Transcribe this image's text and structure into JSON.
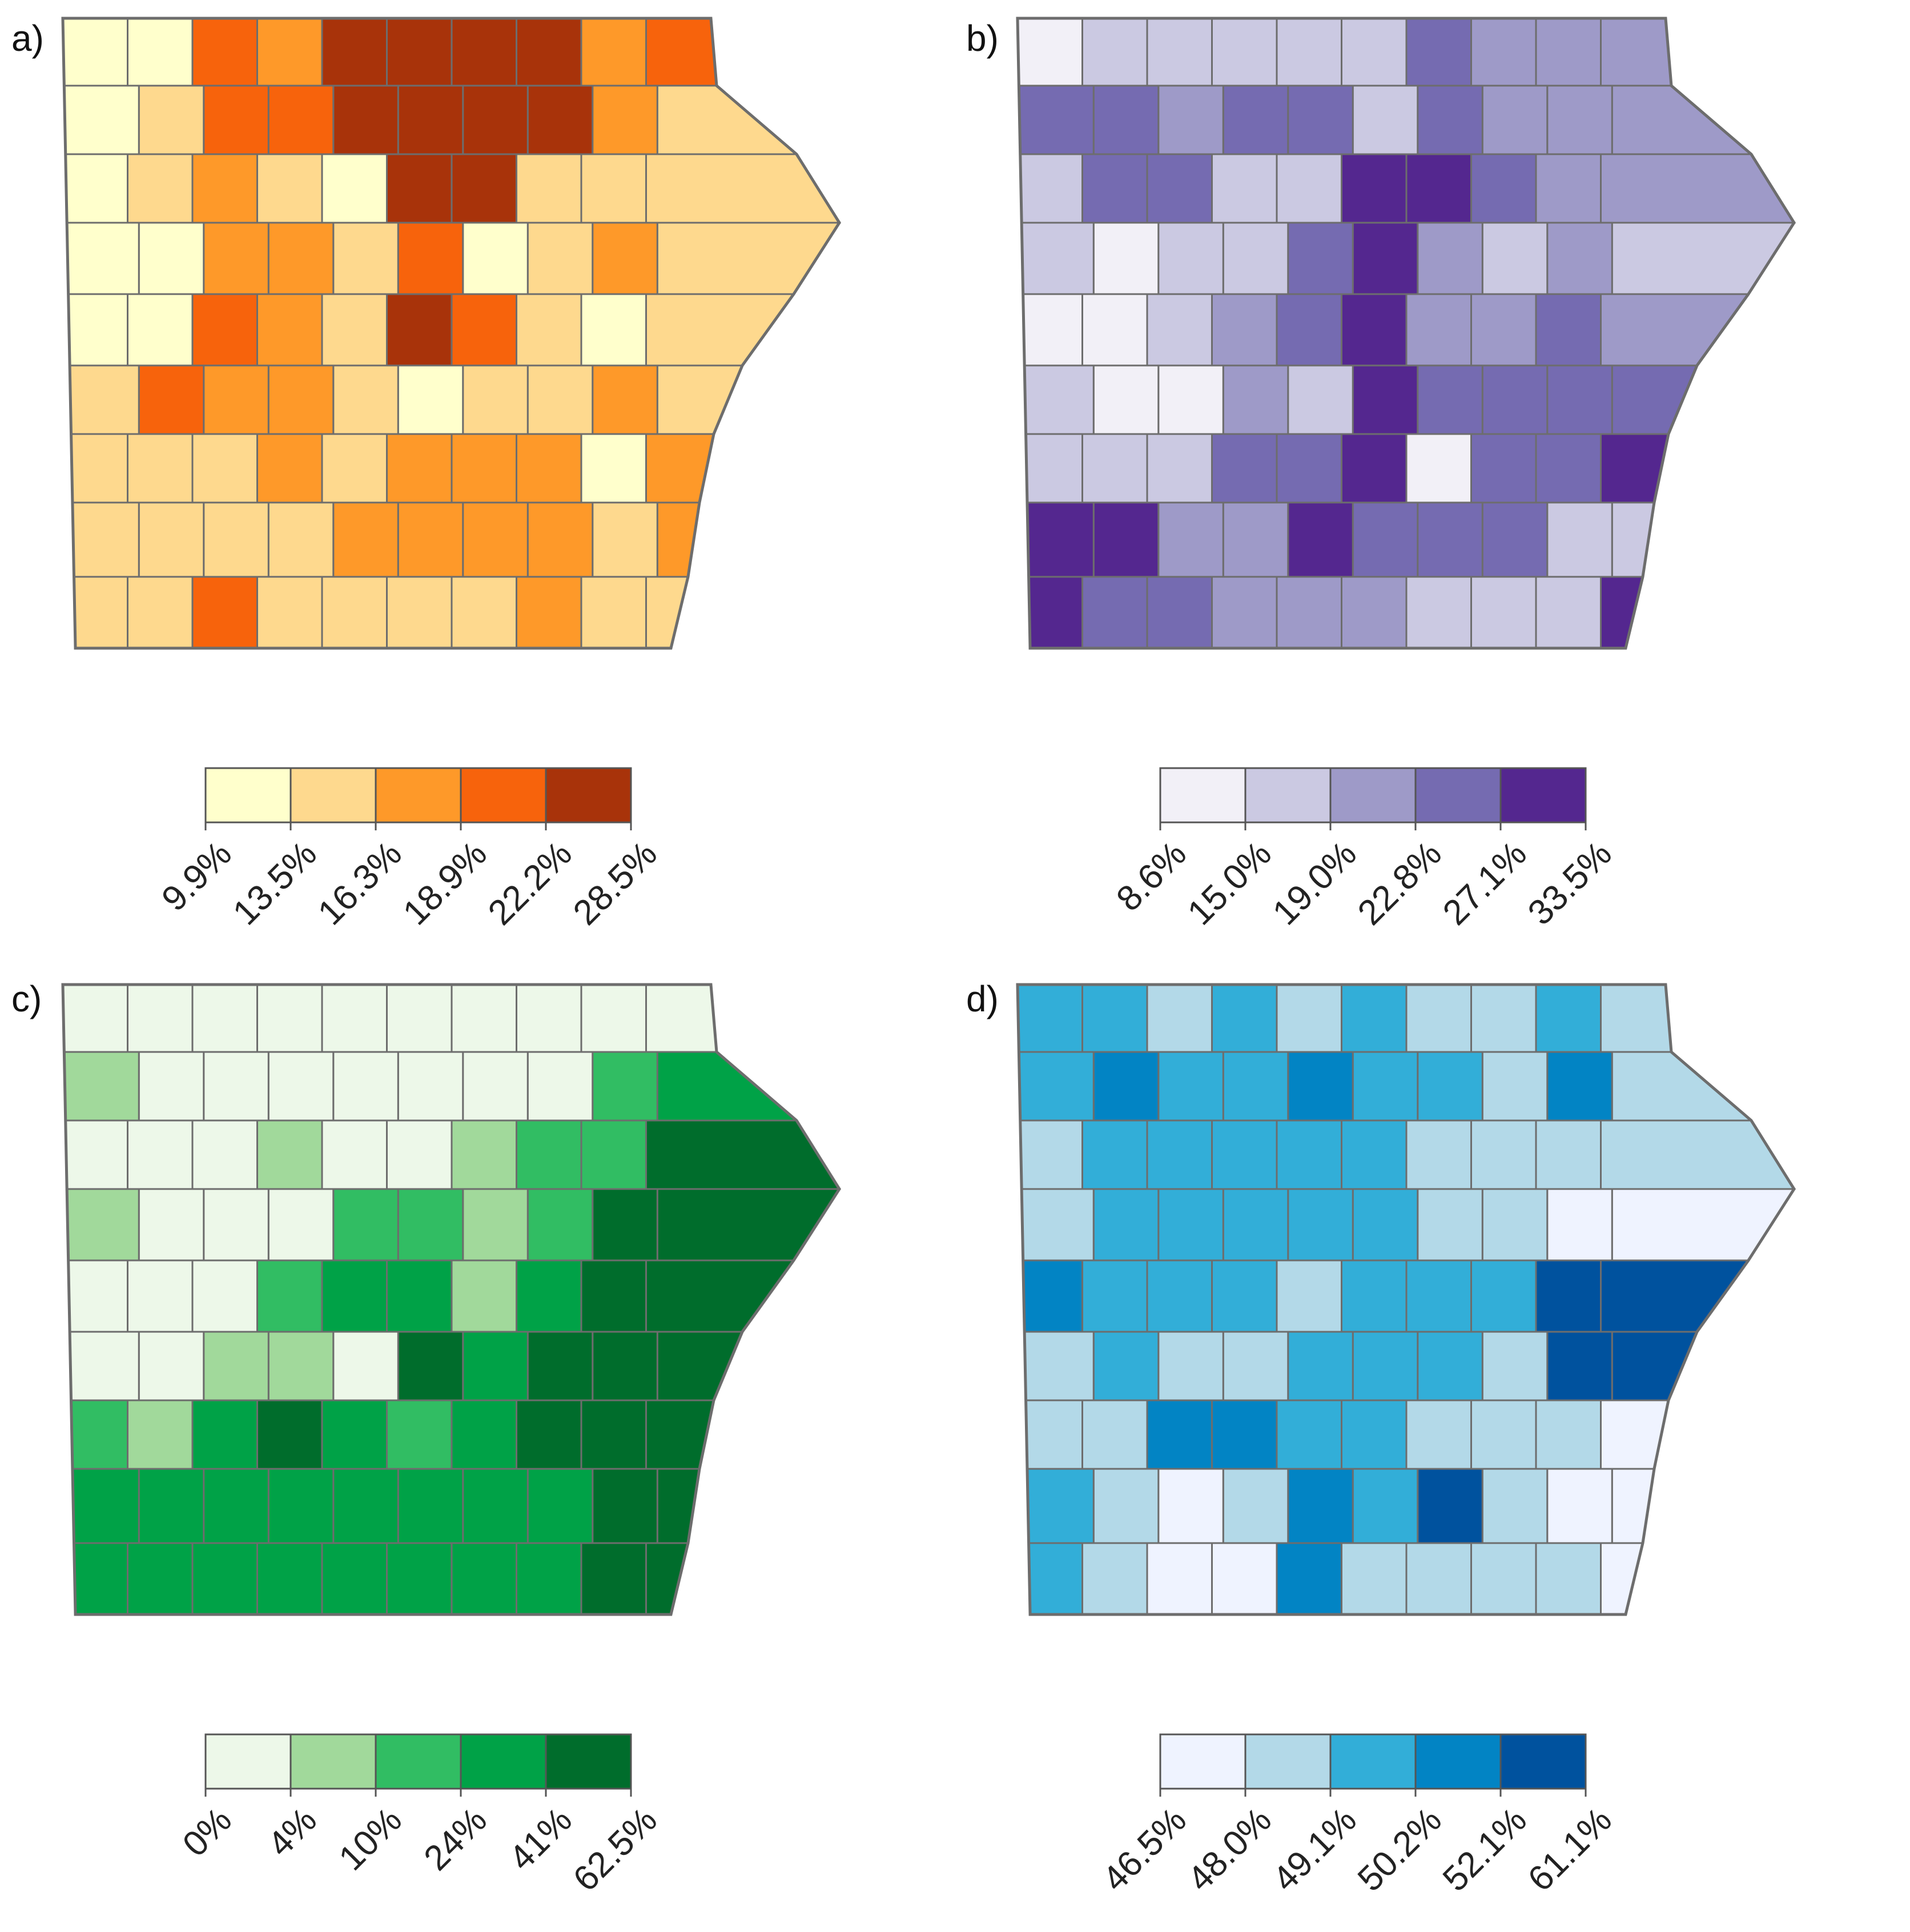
{
  "panels": [
    {
      "letter": "a)",
      "colors": [
        "#ffffcc",
        "#fed98e",
        "#fe9929",
        "#f7630c",
        "#a8330a"
      ],
      "breaks": [
        "9.9%",
        "13.5%",
        "16.3%",
        "18.9%",
        "22.2%",
        "28.5%"
      ],
      "cells": [
        0,
        0,
        3,
        2,
        4,
        4,
        4,
        4,
        2,
        3,
        0,
        1,
        3,
        3,
        4,
        4,
        4,
        4,
        2,
        1,
        0,
        1,
        2,
        1,
        0,
        4,
        4,
        1,
        1,
        1,
        0,
        0,
        2,
        2,
        1,
        3,
        0,
        1,
        2,
        1,
        0,
        0,
        3,
        2,
        1,
        4,
        3,
        1,
        0,
        1,
        1,
        3,
        2,
        2,
        1,
        0,
        1,
        1,
        2,
        1,
        1,
        1,
        1,
        2,
        1,
        2,
        2,
        2,
        0,
        2,
        1,
        1,
        1,
        1,
        2,
        2,
        2,
        2,
        1,
        2,
        1,
        1,
        3,
        1,
        1,
        1,
        1,
        2,
        1,
        1
      ]
    },
    {
      "letter": "b)",
      "colors": [
        "#f2f0f7",
        "#cbc9e2",
        "#9e9ac8",
        "#756bb1",
        "#54278f"
      ],
      "breaks": [
        "8.6%",
        "15.0%",
        "19.0%",
        "22.8%",
        "27.1%",
        "33.5%"
      ],
      "cells": [
        0,
        1,
        1,
        1,
        1,
        1,
        3,
        2,
        2,
        2,
        3,
        3,
        2,
        3,
        3,
        1,
        3,
        2,
        2,
        2,
        1,
        3,
        3,
        1,
        1,
        4,
        4,
        3,
        2,
        2,
        1,
        0,
        1,
        1,
        3,
        4,
        2,
        1,
        2,
        1,
        0,
        0,
        1,
        2,
        3,
        4,
        2,
        2,
        3,
        2,
        1,
        0,
        0,
        2,
        1,
        4,
        3,
        3,
        3,
        3,
        1,
        1,
        1,
        3,
        3,
        4,
        0,
        3,
        3,
        4,
        4,
        4,
        2,
        2,
        4,
        3,
        3,
        3,
        1,
        1,
        4,
        3,
        3,
        2,
        2,
        2,
        1,
        1,
        1,
        4
      ]
    },
    {
      "letter": "c)",
      "colors": [
        "#edf8e9",
        "#a1d99b",
        "#31bd63",
        "#00a247",
        "#006d2c"
      ],
      "breaks": [
        "0%",
        "4%",
        "10%",
        "24%",
        "41%",
        "62.5%"
      ],
      "cells": [
        0,
        0,
        0,
        0,
        0,
        0,
        0,
        0,
        0,
        0,
        1,
        0,
        0,
        0,
        0,
        0,
        0,
        0,
        2,
        3,
        0,
        0,
        0,
        1,
        0,
        0,
        1,
        2,
        2,
        4,
        1,
        0,
        0,
        0,
        2,
        2,
        1,
        2,
        4,
        4,
        0,
        0,
        0,
        2,
        3,
        3,
        1,
        3,
        4,
        4,
        0,
        0,
        1,
        1,
        0,
        4,
        3,
        4,
        4,
        4,
        2,
        1,
        3,
        4,
        3,
        2,
        3,
        4,
        4,
        4,
        3,
        3,
        3,
        3,
        3,
        3,
        3,
        3,
        4,
        4,
        3,
        3,
        3,
        3,
        3,
        3,
        3,
        3,
        4,
        4
      ]
    },
    {
      "letter": "d)",
      "colors": [
        "#eff3ff",
        "#b3d9e8",
        "#32aed8",
        "#0284c4",
        "#00529e"
      ],
      "breaks": [
        "46.5%",
        "48.0%",
        "49.1%",
        "50.2%",
        "52.1%",
        "61.1%"
      ],
      "cells": [
        2,
        2,
        1,
        2,
        1,
        2,
        1,
        1,
        2,
        1,
        2,
        3,
        2,
        2,
        3,
        2,
        2,
        1,
        3,
        1,
        1,
        2,
        2,
        2,
        2,
        2,
        1,
        1,
        1,
        1,
        1,
        2,
        2,
        2,
        2,
        2,
        1,
        1,
        0,
        0,
        3,
        2,
        2,
        2,
        1,
        2,
        2,
        2,
        4,
        4,
        1,
        2,
        1,
        1,
        2,
        2,
        2,
        1,
        4,
        4,
        1,
        1,
        3,
        3,
        2,
        2,
        1,
        1,
        1,
        0,
        2,
        1,
        0,
        1,
        3,
        2,
        4,
        1,
        0,
        0,
        2,
        1,
        0,
        0,
        3,
        1,
        1,
        1,
        1,
        0
      ]
    }
  ]
}
